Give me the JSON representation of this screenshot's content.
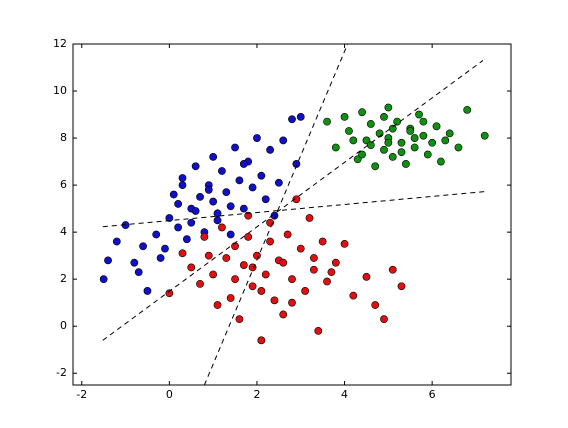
{
  "chart_data": {
    "type": "scatter",
    "xlim": [
      -2.2,
      7.8
    ],
    "ylim": [
      -2.5,
      12
    ],
    "xticks": [
      -2,
      0,
      2,
      4,
      6
    ],
    "yticks": [
      -2,
      0,
      2,
      4,
      6,
      8,
      10,
      12
    ],
    "grid": false,
    "series": [
      {
        "color": "#1010c8",
        "x": [
          -1.5,
          -1.4,
          -1.2,
          -1.0,
          -0.8,
          -0.6,
          -0.5,
          -0.3,
          -0.2,
          0.0,
          0.1,
          0.2,
          0.3,
          0.4,
          0.5,
          0.5,
          0.6,
          0.7,
          0.8,
          0.9,
          1.0,
          1.0,
          1.1,
          1.2,
          1.3,
          1.4,
          1.5,
          1.6,
          1.7,
          1.8,
          1.9,
          2.0,
          2.1,
          2.2,
          2.3,
          2.5,
          2.6,
          2.8,
          2.9,
          3.0,
          0.2,
          0.6,
          1.4,
          -0.1,
          0.9,
          1.7,
          2.4,
          0.3,
          1.1,
          -0.7
        ],
        "y": [
          2.0,
          2.8,
          3.6,
          4.3,
          2.7,
          3.4,
          1.5,
          3.9,
          2.9,
          4.6,
          5.6,
          4.2,
          6.3,
          3.7,
          5.0,
          4.4,
          6.8,
          5.5,
          4.0,
          6.0,
          5.3,
          7.2,
          4.8,
          6.6,
          5.7,
          3.9,
          7.6,
          6.2,
          5.0,
          7.0,
          5.9,
          8.0,
          6.4,
          5.4,
          7.5,
          6.1,
          7.9,
          8.8,
          6.9,
          8.9,
          5.2,
          4.9,
          5.1,
          3.3,
          5.8,
          6.9,
          4.7,
          6.0,
          4.5,
          2.3
        ]
      },
      {
        "color": "#e01010",
        "x": [
          0.0,
          0.3,
          0.5,
          0.7,
          0.8,
          1.0,
          1.1,
          1.2,
          1.3,
          1.4,
          1.5,
          1.6,
          1.7,
          1.8,
          1.9,
          2.0,
          2.1,
          2.2,
          2.3,
          2.4,
          2.5,
          2.6,
          2.7,
          2.8,
          2.9,
          3.0,
          3.1,
          3.2,
          3.3,
          3.4,
          3.5,
          3.6,
          3.8,
          4.0,
          4.2,
          4.5,
          4.7,
          4.9,
          5.1,
          5.3,
          1.9,
          2.3,
          2.8,
          1.5,
          3.3,
          2.1,
          0.9,
          1.8,
          3.7,
          2.6
        ],
        "y": [
          1.4,
          3.1,
          2.5,
          1.8,
          3.8,
          2.2,
          0.9,
          4.2,
          2.9,
          1.2,
          3.4,
          0.3,
          2.6,
          4.7,
          1.7,
          3.0,
          -0.6,
          2.2,
          4.4,
          1.1,
          2.8,
          0.5,
          3.9,
          2.0,
          5.4,
          3.3,
          1.5,
          4.6,
          2.4,
          -0.2,
          3.6,
          1.9,
          2.7,
          3.5,
          1.3,
          2.1,
          0.9,
          0.3,
          2.4,
          1.7,
          2.5,
          3.6,
          1.0,
          2.0,
          2.9,
          1.5,
          3.0,
          3.8,
          2.3,
          2.7
        ]
      },
      {
        "color": "#109010",
        "x": [
          3.6,
          3.8,
          4.0,
          4.1,
          4.3,
          4.4,
          4.5,
          4.6,
          4.7,
          4.8,
          4.9,
          5.0,
          5.0,
          5.1,
          5.2,
          5.3,
          5.4,
          5.5,
          5.6,
          5.7,
          5.8,
          5.9,
          6.0,
          6.1,
          6.2,
          6.4,
          6.6,
          6.8,
          7.2,
          4.2,
          4.9,
          5.3,
          5.6,
          4.6,
          5.1,
          5.8,
          4.4,
          5.0,
          5.5,
          6.3
        ],
        "y": [
          8.7,
          7.6,
          8.9,
          8.3,
          7.1,
          9.1,
          7.9,
          8.6,
          6.8,
          8.2,
          7.5,
          9.3,
          8.0,
          7.2,
          8.7,
          7.8,
          6.9,
          8.4,
          7.6,
          9.0,
          8.1,
          7.3,
          7.8,
          8.5,
          7.0,
          8.2,
          7.6,
          9.2,
          8.1,
          7.9,
          8.9,
          7.4,
          8.0,
          7.7,
          8.4,
          8.7,
          7.3,
          7.8,
          8.3,
          7.9
        ]
      }
    ],
    "lines": [
      {
        "color": "#000000",
        "linestyle": "dashed",
        "x": [
          -1.52,
          7.16
        ],
        "y": [
          -0.6,
          11.3
        ]
      },
      {
        "color": "#000000",
        "linestyle": "dashed",
        "x": [
          0.8,
          4.07
        ],
        "y": [
          -2.5,
          12
        ]
      },
      {
        "color": "#000000",
        "linestyle": "dashed",
        "x": [
          -1.52,
          7.23
        ],
        "y": [
          4.23,
          5.73
        ]
      }
    ]
  }
}
